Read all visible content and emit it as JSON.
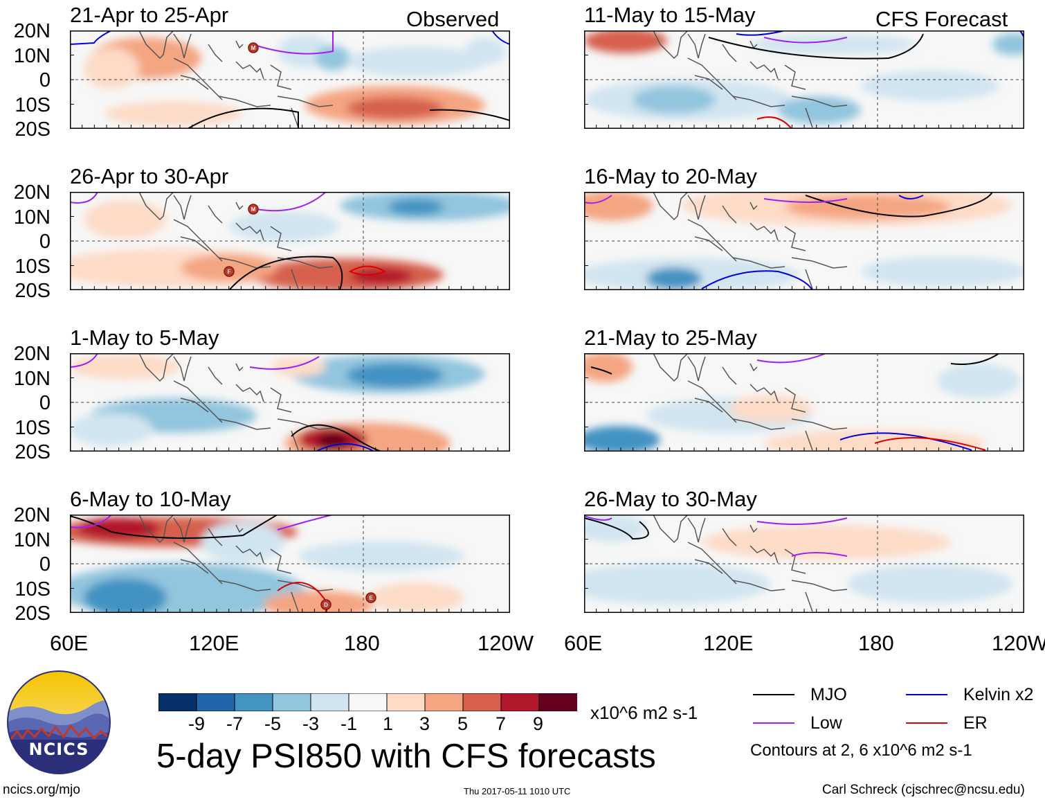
{
  "header": {
    "observed_label": "Observed",
    "forecast_label": "CFS Forecast"
  },
  "panels": [
    {
      "title": "21-Apr to 25-Apr",
      "group": "observed"
    },
    {
      "title": "26-Apr to 30-Apr",
      "group": "observed"
    },
    {
      "title": "1-May to 5-May",
      "group": "observed"
    },
    {
      "title": "6-May to 10-May",
      "group": "observed"
    },
    {
      "title": "11-May to 15-May",
      "group": "forecast"
    },
    {
      "title": "16-May to 20-May",
      "group": "forecast"
    },
    {
      "title": "21-May to 25-May",
      "group": "forecast"
    },
    {
      "title": "26-May to 30-May",
      "group": "forecast"
    }
  ],
  "axes": {
    "lat_labels": [
      "20N",
      "10N",
      "0",
      "10S",
      "20S"
    ],
    "lon_labels": [
      "60E",
      "120E",
      "180",
      "120W"
    ]
  },
  "storm_markers": {
    "panel1": [
      "M"
    ],
    "panel2": [
      "M",
      "F"
    ],
    "panel4": [
      "D",
      "E"
    ]
  },
  "colorbar": {
    "ticks": [
      "-9",
      "-7",
      "-5",
      "-3",
      "-1",
      "1",
      "3",
      "5",
      "7",
      "9"
    ],
    "units": "x10^6 m2 s-1",
    "colors": [
      "#08306b",
      "#2166ac",
      "#4393c3",
      "#92c5de",
      "#d1e5f0",
      "#f7f7f7",
      "#fddbc7",
      "#f4a582",
      "#d6604d",
      "#b2182b",
      "#67001f"
    ]
  },
  "main_title": "5-day PSI850 with CFS forecasts",
  "legend": {
    "items": [
      {
        "label": "MJO",
        "color": "#000000"
      },
      {
        "label": "Kelvin x2",
        "color": "#0000dd"
      },
      {
        "label": "Low",
        "color": "#a020f0"
      },
      {
        "label": "ER",
        "color": "#dd0000"
      }
    ],
    "contours_note": "Contours at 2, 6 x10^6 m2 s-1"
  },
  "logo": {
    "text": "NCICS"
  },
  "footer": {
    "url": "ncics.org/mjo",
    "timestamp": "Thu 2017-05-11 1010 UTC",
    "credit": "Carl Schreck (cjschrec@ncsu.edu)"
  }
}
